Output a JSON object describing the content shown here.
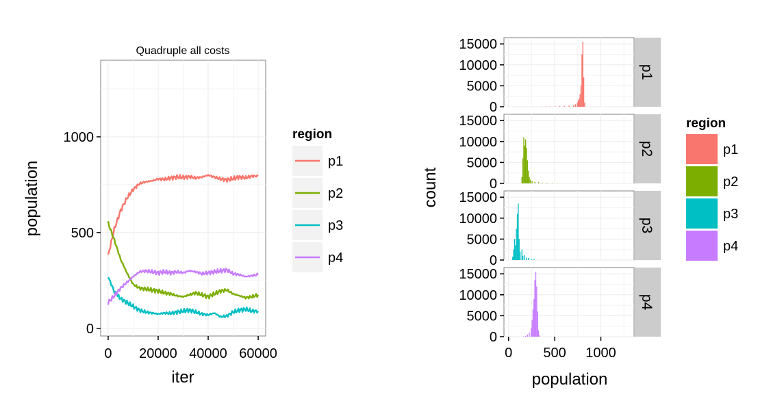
{
  "chart_data": [
    {
      "type": "line",
      "title": "Quadruple all costs",
      "xlabel": "iter",
      "ylabel": "population",
      "xlim": [
        -3000,
        63000
      ],
      "ylim": [
        -40,
        1400
      ],
      "x_ticks": [
        0,
        20000,
        40000,
        60000
      ],
      "x_tick_labels": [
        "0",
        "20000",
        "40000",
        "60000"
      ],
      "y_ticks": [
        0,
        500,
        1000
      ],
      "y_tick_labels": [
        "0",
        "500",
        "1000"
      ],
      "grid": true,
      "legend_title": "region",
      "legend_position": "right",
      "x": [
        0,
        2500,
        5000,
        7500,
        10000,
        12500,
        15000,
        17500,
        20000,
        22500,
        25000,
        27500,
        30000,
        32500,
        35000,
        37500,
        40000,
        42500,
        45000,
        47500,
        50000,
        52500,
        55000,
        57500,
        60000
      ],
      "series": [
        {
          "name": "p1",
          "color": "#F8766D",
          "values": [
            380,
            520,
            615,
            680,
            725,
            755,
            765,
            770,
            780,
            778,
            785,
            790,
            788,
            792,
            785,
            790,
            800,
            790,
            780,
            775,
            782,
            790,
            786,
            795,
            795
          ]
        },
        {
          "name": "p2",
          "color": "#7CAE00",
          "values": [
            550,
            460,
            360,
            290,
            230,
            210,
            205,
            200,
            195,
            185,
            180,
            170,
            165,
            175,
            185,
            175,
            165,
            180,
            195,
            200,
            180,
            170,
            160,
            165,
            175
          ]
        },
        {
          "name": "p3",
          "color": "#00BFC4",
          "values": [
            270,
            190,
            155,
            135,
            115,
            95,
            85,
            80,
            75,
            80,
            78,
            85,
            90,
            95,
            85,
            75,
            70,
            80,
            60,
            65,
            85,
            95,
            100,
            90,
            90
          ]
        },
        {
          "name": "p4",
          "color": "#C77CFF",
          "values": [
            135,
            170,
            210,
            240,
            270,
            295,
            300,
            295,
            290,
            295,
            290,
            295,
            290,
            300,
            295,
            285,
            290,
            295,
            300,
            305,
            285,
            280,
            270,
            275,
            280
          ]
        }
      ]
    },
    {
      "type": "bar",
      "subtype": "faceted histogram",
      "xlabel": "population",
      "ylabel": "count",
      "xlim": [
        -50,
        1360
      ],
      "ylim": [
        0,
        16500
      ],
      "x_ticks": [
        0,
        500,
        1000
      ],
      "x_tick_labels": [
        "0",
        "500",
        "1000"
      ],
      "y_ticks": [
        0,
        5000,
        10000,
        15000
      ],
      "y_tick_labels": [
        "0",
        "5000",
        "10000",
        "15000"
      ],
      "grid": true,
      "legend_title": "region",
      "legend_position": "right",
      "bin_width": 10,
      "facets": [
        {
          "name": "p1",
          "color": "#F8766D",
          "bins": [
            [
              350,
              60
            ],
            [
              400,
              80
            ],
            [
              450,
              100
            ],
            [
              500,
              120
            ],
            [
              550,
              150
            ],
            [
              600,
              200
            ],
            [
              650,
              280
            ],
            [
              700,
              400
            ],
            [
              720,
              600
            ],
            [
              740,
              1000
            ],
            [
              750,
              1500
            ],
            [
              760,
              2000
            ],
            [
              770,
              3000
            ],
            [
              780,
              5000
            ],
            [
              790,
              12500
            ],
            [
              800,
              15500
            ],
            [
              810,
              7000
            ],
            [
              820,
              1000
            ]
          ]
        },
        {
          "name": "p2",
          "color": "#7CAE00",
          "bins": [
            [
              140,
              1500
            ],
            [
              150,
              6000
            ],
            [
              160,
              11000
            ],
            [
              170,
              9000
            ],
            [
              180,
              10500
            ],
            [
              190,
              8500
            ],
            [
              200,
              5500
            ],
            [
              210,
              3000
            ],
            [
              220,
              1500
            ],
            [
              230,
              900
            ],
            [
              250,
              600
            ],
            [
              280,
              400
            ],
            [
              320,
              300
            ],
            [
              360,
              200
            ],
            [
              410,
              150
            ],
            [
              470,
              100
            ],
            [
              520,
              60
            ]
          ]
        },
        {
          "name": "p3",
          "color": "#00BFC4",
          "bins": [
            [
              40,
              800
            ],
            [
              50,
              2500
            ],
            [
              60,
              5000
            ],
            [
              70,
              3500
            ],
            [
              80,
              7500
            ],
            [
              90,
              11000
            ],
            [
              100,
              13500
            ],
            [
              110,
              5000
            ],
            [
              120,
              2000
            ],
            [
              140,
              2500
            ],
            [
              150,
              1000
            ],
            [
              170,
              1200
            ],
            [
              190,
              600
            ],
            [
              210,
              500
            ],
            [
              240,
              300
            ],
            [
              270,
              200
            ]
          ]
        },
        {
          "name": "p4",
          "color": "#C77CFF",
          "bins": [
            [
              160,
              100
            ],
            [
              180,
              200
            ],
            [
              200,
              500
            ],
            [
              220,
              1000
            ],
            [
              240,
              2000
            ],
            [
              250,
              4000
            ],
            [
              260,
              6500
            ],
            [
              270,
              9000
            ],
            [
              280,
              13500
            ],
            [
              290,
              15500
            ],
            [
              300,
              12000
            ],
            [
              310,
              6000
            ],
            [
              320,
              1500
            ],
            [
              330,
              300
            ]
          ]
        }
      ]
    }
  ]
}
